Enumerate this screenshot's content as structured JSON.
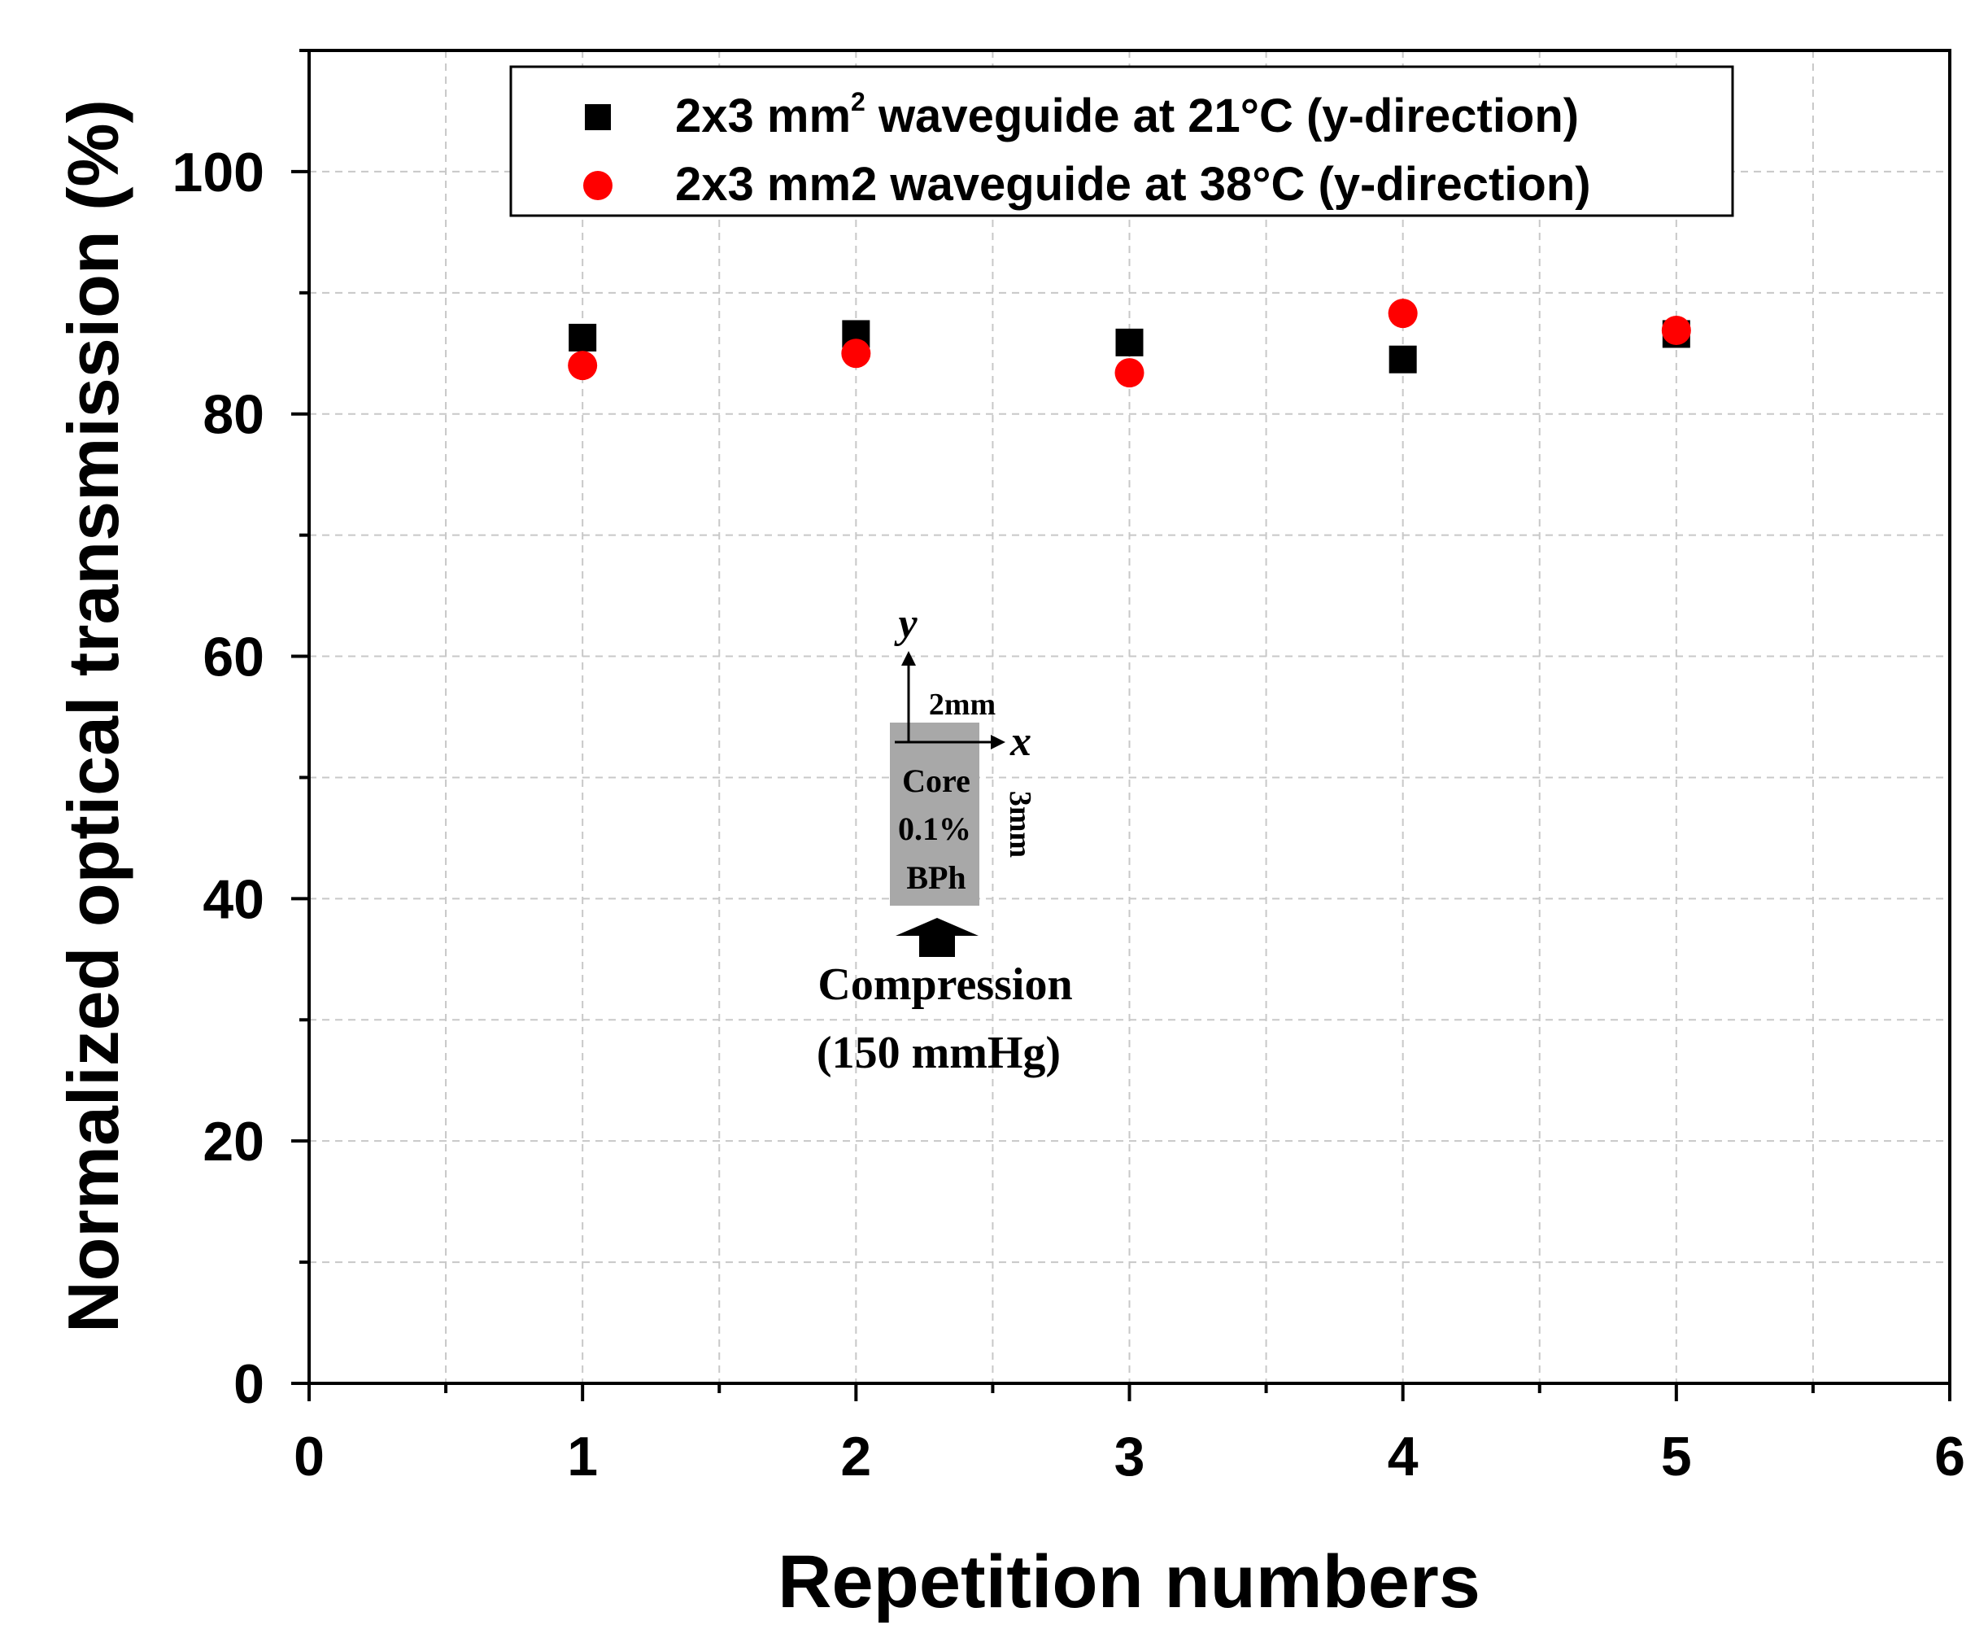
{
  "chart_data": {
    "type": "scatter",
    "title": "",
    "xlabel": "Repetition numbers",
    "ylabel": "Normalized optical transmission (%)",
    "xlim": [
      0,
      6
    ],
    "ylim": [
      0,
      110
    ],
    "x_ticks": [
      0,
      1,
      2,
      3,
      4,
      5,
      6
    ],
    "y_ticks": [
      0,
      20,
      40,
      60,
      80,
      100
    ],
    "x_tick_labels": [
      "0",
      "1",
      "2",
      "3",
      "4",
      "5",
      "6"
    ],
    "y_tick_labels": [
      "0",
      "20",
      "40",
      "60",
      "80",
      "100"
    ],
    "grid": true,
    "legend_position": "top",
    "series": [
      {
        "name": "2x3 mm² waveguide at 21°C (y-direction)",
        "name_main": "2x3 mm",
        "name_sup": "2",
        "name_rest": " waveguide at 21°C (y-direction)",
        "marker": "square",
        "color": "#000000",
        "x": [
          1,
          2,
          3,
          4,
          5
        ],
        "y": [
          86.3,
          86.6,
          85.9,
          84.5,
          86.6
        ]
      },
      {
        "name": "2x3 mm2 waveguide at 38°C (y-direction)",
        "marker": "circle",
        "color": "#ff0000",
        "x": [
          1,
          2,
          3,
          4,
          5
        ],
        "y": [
          84.0,
          85.0,
          83.4,
          88.3,
          86.9
        ]
      }
    ],
    "inset": {
      "y_axis_label": "y",
      "x_axis_label": "x",
      "width_label": "2mm",
      "height_label": "3mm",
      "core_lines": [
        "Core",
        "0.1%",
        "BPh"
      ],
      "compression_label": "Compression",
      "pressure_label": "(150 mmHg)",
      "core_color": "#a8a8a8"
    }
  }
}
